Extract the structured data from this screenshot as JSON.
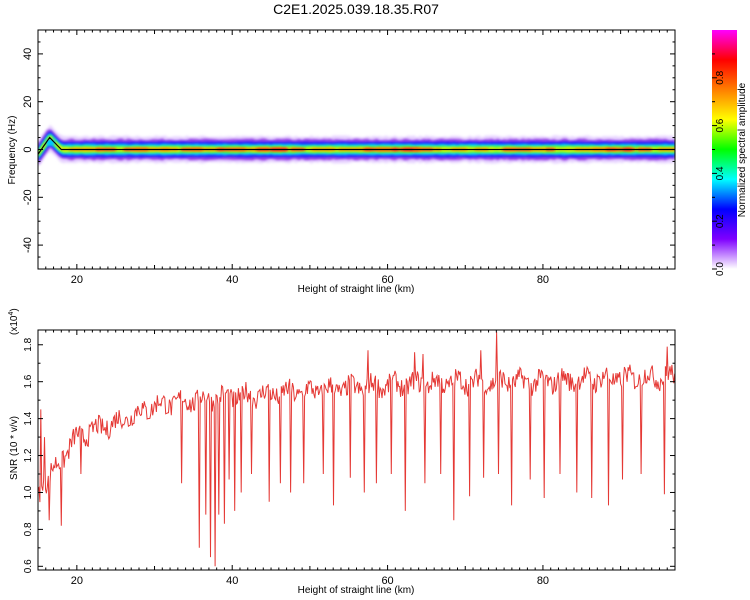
{
  "title": "C2E1.2025.039.18.35.R07",
  "chart_data": [
    {
      "type": "heatmap",
      "xlabel": "Height of straight line (km)",
      "ylabel": "Frequency (Hz)",
      "xlim": [
        15,
        97
      ],
      "ylim": [
        -50,
        50
      ],
      "xticks": [
        20,
        40,
        60,
        80
      ],
      "yticks": [
        40,
        20,
        0,
        -20,
        -40
      ],
      "band_center_hz": 0,
      "band_halfwidth_hz": 3,
      "wobble_hz": [
        [
          15,
          -2
        ],
        [
          16.5,
          5
        ],
        [
          18,
          0
        ],
        [
          20,
          0
        ],
        [
          97,
          0
        ]
      ],
      "colorbar": {
        "label": "Normalized spectral amplitude",
        "range": [
          0,
          1
        ],
        "ticks": [
          "0.0",
          "0.2",
          "0.4",
          "0.6",
          "0.8"
        ],
        "ticks_values": [
          0.0,
          0.2,
          0.4,
          0.6,
          0.8
        ],
        "colors": [
          "#ffffff",
          "#7f00ff",
          "#0000ff",
          "#00ffff",
          "#00ff00",
          "#ffff00",
          "#ff7f00",
          "#ff0000",
          "#ff00ff"
        ]
      },
      "line_color": "#000000"
    },
    {
      "type": "line",
      "xlabel": "Height of straight line (km)",
      "ylabel": "SNR (10 * v/v)",
      "scale_note": "(x10",
      "scale_exp": "4",
      "scale_close": ")",
      "xlim": [
        15,
        97
      ],
      "ylim": [
        0.58,
        1.88
      ],
      "xticks": [
        20,
        40,
        60,
        80
      ],
      "yticks": [
        0.6,
        0.8,
        1.0,
        1.2,
        1.4,
        1.6,
        1.8
      ],
      "ytick_labels": [
        "0.6",
        "0.8",
        "1.0",
        "1.2",
        "1.4",
        "1.6",
        "1.8"
      ],
      "series_color": "#e53935",
      "trend": [
        [
          15,
          1.0
        ],
        [
          20,
          1.3
        ],
        [
          25,
          1.38
        ],
        [
          30,
          1.47
        ],
        [
          35,
          1.5
        ],
        [
          40,
          1.52
        ],
        [
          50,
          1.55
        ],
        [
          60,
          1.58
        ],
        [
          70,
          1.6
        ],
        [
          80,
          1.6
        ],
        [
          90,
          1.62
        ],
        [
          97,
          1.63
        ]
      ],
      "dips": [
        [
          15.8,
          1.3
        ],
        [
          16.4,
          0.85
        ],
        [
          18,
          0.82
        ],
        [
          20.5,
          1.1
        ],
        [
          33.5,
          1.05
        ],
        [
          35.8,
          0.7
        ],
        [
          36.6,
          0.88
        ],
        [
          37.2,
          0.65
        ],
        [
          37.8,
          0.6
        ],
        [
          38.3,
          0.88
        ],
        [
          39,
          0.83
        ],
        [
          39.6,
          1.07
        ],
        [
          40.3,
          0.9
        ],
        [
          41.2,
          1.0
        ],
        [
          42.5,
          1.1
        ],
        [
          44.8,
          0.95
        ],
        [
          46.2,
          1.05
        ],
        [
          47.5,
          1.0
        ],
        [
          49.2,
          1.05
        ],
        [
          51.7,
          1.1
        ],
        [
          53,
          0.93
        ],
        [
          55.2,
          1.08
        ],
        [
          57,
          1.0
        ],
        [
          58.5,
          1.05
        ],
        [
          60.5,
          1.1
        ],
        [
          62.3,
          0.9
        ],
        [
          64.8,
          1.05
        ],
        [
          66.8,
          1.1
        ],
        [
          68.5,
          0.85
        ],
        [
          70.5,
          0.98
        ],
        [
          72.4,
          1.08
        ],
        [
          74.3,
          1.1
        ],
        [
          76,
          0.93
        ],
        [
          78.3,
          1.07
        ],
        [
          80.2,
          0.97
        ],
        [
          82.2,
          1.1
        ],
        [
          84.4,
          1.0
        ],
        [
          86.3,
          0.97
        ],
        [
          88.5,
          0.93
        ],
        [
          90.3,
          1.07
        ],
        [
          92.6,
          1.1
        ],
        [
          95.6,
          0.99
        ]
      ],
      "peaks": [
        [
          74,
          1.87
        ],
        [
          96,
          1.79
        ],
        [
          64.5,
          1.75
        ],
        [
          57.5,
          1.77
        ],
        [
          63.5,
          1.76
        ],
        [
          72,
          1.77
        ],
        [
          15.3,
          1.45
        ]
      ]
    }
  ]
}
